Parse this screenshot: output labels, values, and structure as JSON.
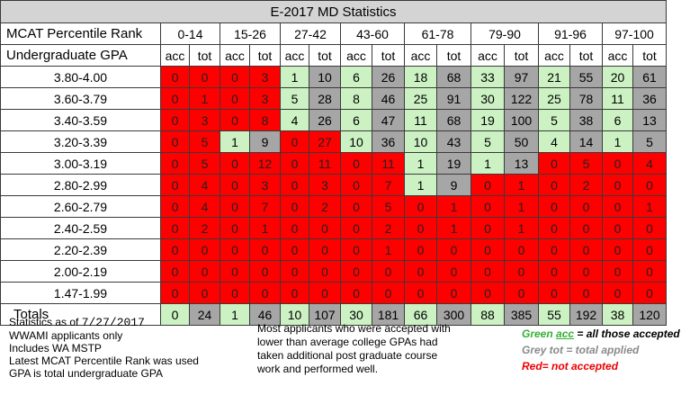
{
  "title": "E-2017 MD Statistics",
  "header": {
    "mcat_label": "MCAT Percentile Rank",
    "gpa_label": "Undergraduate GPA",
    "mcat_ranges": [
      "0-14",
      "15-26",
      "27-42",
      "43-60",
      "61-78",
      "79-90",
      "91-96",
      "97-100"
    ],
    "acc_label": "acc",
    "tot_label": "tot"
  },
  "rows": [
    {
      "gpa": "3.80-4.00",
      "cells": [
        [
          0,
          0
        ],
        [
          0,
          3
        ],
        [
          1,
          10
        ],
        [
          6,
          26
        ],
        [
          18,
          68
        ],
        [
          33,
          97
        ],
        [
          21,
          55
        ],
        [
          20,
          61
        ]
      ],
      "colors": [
        "rr",
        "rr",
        "gy",
        "gy",
        "gy",
        "gy",
        "gy",
        "gy"
      ]
    },
    {
      "gpa": "3.60-3.79",
      "cells": [
        [
          0,
          1
        ],
        [
          0,
          3
        ],
        [
          5,
          28
        ],
        [
          8,
          46
        ],
        [
          25,
          91
        ],
        [
          30,
          122
        ],
        [
          25,
          78
        ],
        [
          11,
          36
        ]
      ],
      "colors": [
        "rr",
        "rr",
        "gy",
        "gy",
        "gy",
        "gy",
        "gy",
        "gy"
      ]
    },
    {
      "gpa": "3.40-3.59",
      "cells": [
        [
          0,
          3
        ],
        [
          0,
          8
        ],
        [
          4,
          26
        ],
        [
          6,
          47
        ],
        [
          11,
          68
        ],
        [
          19,
          100
        ],
        [
          5,
          38
        ],
        [
          6,
          13
        ]
      ],
      "colors": [
        "rr",
        "rr",
        "gy",
        "gy",
        "gy",
        "gy",
        "gy",
        "gy"
      ]
    },
    {
      "gpa": "3.20-3.39",
      "cells": [
        [
          0,
          5
        ],
        [
          1,
          9
        ],
        [
          0,
          27
        ],
        [
          10,
          36
        ],
        [
          10,
          43
        ],
        [
          5,
          50
        ],
        [
          4,
          14
        ],
        [
          1,
          5
        ]
      ],
      "colors": [
        "rr",
        "gy",
        "rr",
        "gy",
        "gy",
        "gy",
        "gy",
        "gy"
      ]
    },
    {
      "gpa": "3.00-3.19",
      "cells": [
        [
          0,
          5
        ],
        [
          0,
          12
        ],
        [
          0,
          11
        ],
        [
          0,
          11
        ],
        [
          1,
          19
        ],
        [
          1,
          13
        ],
        [
          0,
          5
        ],
        [
          0,
          4
        ]
      ],
      "colors": [
        "rr",
        "rr",
        "rr",
        "rr",
        "gy",
        "gy",
        "rr",
        "rr"
      ]
    },
    {
      "gpa": "2.80-2.99",
      "cells": [
        [
          0,
          4
        ],
        [
          0,
          3
        ],
        [
          0,
          3
        ],
        [
          0,
          7
        ],
        [
          1,
          9
        ],
        [
          0,
          1
        ],
        [
          0,
          2
        ],
        [
          0,
          0
        ]
      ],
      "colors": [
        "rr",
        "rr",
        "rr",
        "rr",
        "gy",
        "rr",
        "rr",
        "rr"
      ]
    },
    {
      "gpa": "2.60-2.79",
      "cells": [
        [
          0,
          4
        ],
        [
          0,
          7
        ],
        [
          0,
          2
        ],
        [
          0,
          5
        ],
        [
          0,
          1
        ],
        [
          0,
          1
        ],
        [
          0,
          0
        ],
        [
          0,
          1
        ]
      ],
      "colors": [
        "rr",
        "rr",
        "rr",
        "rr",
        "rr",
        "rr",
        "rr",
        "rr"
      ]
    },
    {
      "gpa": "2.40-2.59",
      "cells": [
        [
          0,
          2
        ],
        [
          0,
          1
        ],
        [
          0,
          0
        ],
        [
          0,
          2
        ],
        [
          0,
          1
        ],
        [
          0,
          1
        ],
        [
          0,
          0
        ],
        [
          0,
          0
        ]
      ],
      "colors": [
        "rr",
        "rr",
        "rr",
        "rr",
        "rr",
        "rr",
        "rr",
        "rr"
      ]
    },
    {
      "gpa": "2.20-2.39",
      "cells": [
        [
          0,
          0
        ],
        [
          0,
          0
        ],
        [
          0,
          0
        ],
        [
          0,
          1
        ],
        [
          0,
          0
        ],
        [
          0,
          0
        ],
        [
          0,
          0
        ],
        [
          0,
          0
        ]
      ],
      "colors": [
        "rr",
        "rr",
        "rr",
        "rr",
        "rr",
        "rr",
        "rr",
        "rr"
      ]
    },
    {
      "gpa": "2.00-2.19",
      "cells": [
        [
          0,
          0
        ],
        [
          0,
          0
        ],
        [
          0,
          0
        ],
        [
          0,
          0
        ],
        [
          0,
          0
        ],
        [
          0,
          0
        ],
        [
          0,
          0
        ],
        [
          0,
          0
        ]
      ],
      "colors": [
        "rr",
        "rr",
        "rr",
        "rr",
        "rr",
        "rr",
        "rr",
        "rr"
      ]
    },
    {
      "gpa": "1.47-1.99",
      "cells": [
        [
          0,
          0
        ],
        [
          0,
          0
        ],
        [
          0,
          0
        ],
        [
          0,
          0
        ],
        [
          0,
          0
        ],
        [
          0,
          0
        ],
        [
          0,
          0
        ],
        [
          0,
          0
        ]
      ],
      "colors": [
        "rr",
        "rr",
        "rr",
        "rr",
        "rr",
        "rr",
        "rr",
        "rr"
      ]
    }
  ],
  "totals": {
    "label": "Totals",
    "cells": [
      [
        0,
        24
      ],
      [
        1,
        46
      ],
      [
        10,
        107
      ],
      [
        30,
        181
      ],
      [
        66,
        300
      ],
      [
        88,
        385
      ],
      [
        55,
        192
      ],
      [
        38,
        120
      ]
    ]
  },
  "notes_left": {
    "line1_prefix": "Statistics as of ",
    "line1_date": "7/27/2017",
    "lines": [
      "WWAMI applicants only",
      "Includes WA MSTP",
      "Latest MCAT Percentile Rank was used",
      "GPA is total undergraduate  GPA"
    ]
  },
  "notes_center": [
    "Most applicants who were accepted with",
    "lower than average college GPAs had",
    "taken additional post graduate course",
    "work and performed well."
  ],
  "legend": {
    "green_word": "Green ",
    "green_acc": "acc",
    "green_text": " = all those accepted",
    "grey_text": "Grey tot = total applied",
    "red_text": "Red= not accepted"
  },
  "colors": {
    "accepted_green": "#ccf2c4",
    "total_grey": "#a6a6a6",
    "not_accepted_red": "#ff0000",
    "title_bar": "#d4d4d4"
  }
}
